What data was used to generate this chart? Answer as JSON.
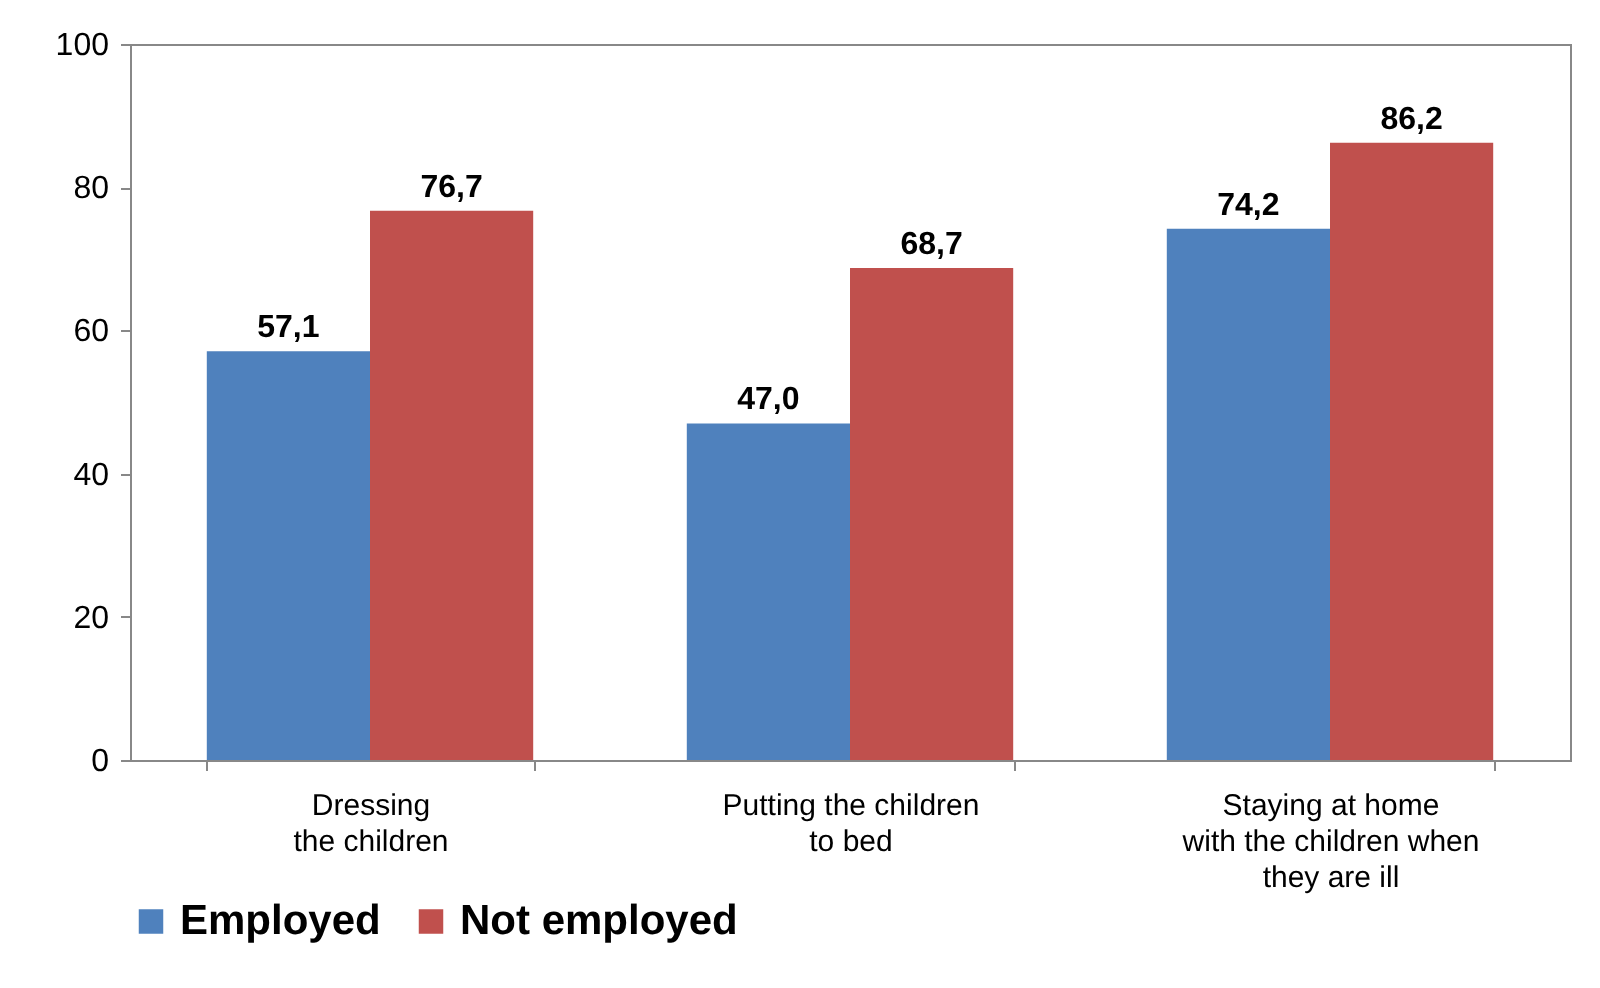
{
  "chart_data": {
    "type": "bar",
    "categories": [
      "Dressing\nthe children",
      "Putting the children\nto bed",
      "Staying at home\nwith the children when\nthey are ill"
    ],
    "series": [
      {
        "name": "Employed",
        "color": "#4f81bd",
        "values": [
          57.1,
          47.0,
          74.2
        ],
        "value_labels": [
          "57,1",
          "47,0",
          "74,2"
        ]
      },
      {
        "name": "Not employed",
        "color": "#c0504d",
        "values": [
          76.7,
          68.7,
          86.2
        ],
        "value_labels": [
          "76,7",
          "68,7",
          "86,2"
        ]
      }
    ],
    "ylim": [
      0,
      100
    ],
    "yticks": [
      0,
      20,
      40,
      60,
      80,
      100
    ],
    "legend": "bottom"
  }
}
